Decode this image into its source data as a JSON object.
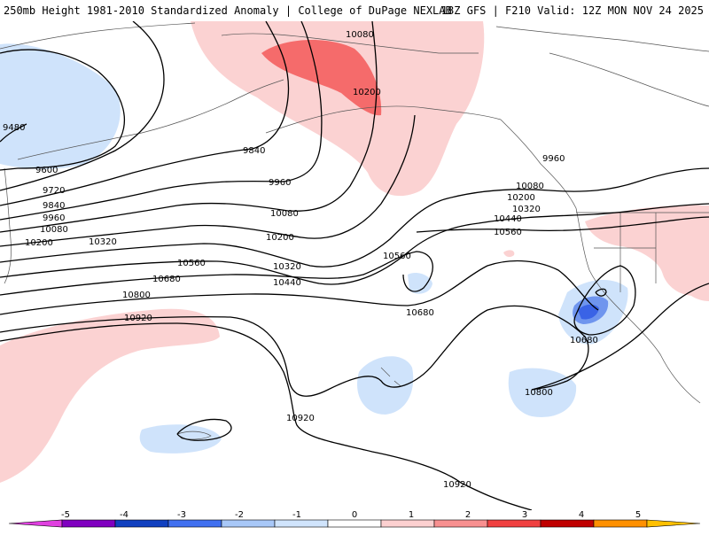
{
  "header": {
    "title_left": "250mb Height 1981-2010 Standardized Anomaly | College of DuPage NEXLAB",
    "title_right": "18Z GFS | F210 Valid: 12Z MON NOV 24 2025"
  },
  "contours": {
    "labels": [
      "9480",
      "9600",
      "9720",
      "9840",
      "9960",
      "10080",
      "10200",
      "10320",
      "10440",
      "10560",
      "10680",
      "10800",
      "10920"
    ],
    "placed": [
      {
        "id": "lbl-9480",
        "text": "9480"
      },
      {
        "id": "lbl-9600",
        "text": "9600"
      },
      {
        "id": "lbl-9720",
        "text": "9720"
      },
      {
        "id": "lbl-9840-w",
        "text": "9840"
      },
      {
        "id": "lbl-9960-w",
        "text": "9960"
      },
      {
        "id": "lbl-10080-w",
        "text": "10080"
      },
      {
        "id": "lbl-10200-w",
        "text": "10200"
      },
      {
        "id": "lbl-10320-w",
        "text": "10320"
      },
      {
        "id": "lbl-10560-w",
        "text": "10560"
      },
      {
        "id": "lbl-10680-w",
        "text": "10680"
      },
      {
        "id": "lbl-10800-w",
        "text": "10800"
      },
      {
        "id": "lbl-10920-w",
        "text": "10920"
      },
      {
        "id": "lbl-9840-c",
        "text": "9840"
      },
      {
        "id": "lbl-9960-c",
        "text": "9960"
      },
      {
        "id": "lbl-10080-c",
        "text": "10080"
      },
      {
        "id": "lbl-10200-c",
        "text": "10200"
      },
      {
        "id": "lbl-10320-c",
        "text": "10320"
      },
      {
        "id": "lbl-10440-c",
        "text": "10440"
      },
      {
        "id": "lbl-10080-n",
        "text": "10080"
      },
      {
        "id": "lbl-10200-n",
        "text": "10200"
      },
      {
        "id": "lbl-10560-m",
        "text": "10560"
      },
      {
        "id": "lbl-10680-m",
        "text": "10680"
      },
      {
        "id": "lbl-9960-e",
        "text": "9960"
      },
      {
        "id": "lbl-10080-e",
        "text": "10080"
      },
      {
        "id": "lbl-10200-e",
        "text": "10200"
      },
      {
        "id": "lbl-10320-e",
        "text": "10320"
      },
      {
        "id": "lbl-10440-e",
        "text": "10440"
      },
      {
        "id": "lbl-10560-e",
        "text": "10560"
      },
      {
        "id": "lbl-10680-e",
        "text": "10680"
      },
      {
        "id": "lbl-10800-e",
        "text": "10800"
      },
      {
        "id": "lbl-10920-s",
        "text": "10920"
      },
      {
        "id": "lbl-10920-se",
        "text": "10920"
      }
    ]
  },
  "colorbar": {
    "ticks": [
      "-5",
      "-4",
      "-3",
      "-2",
      "-1",
      "0",
      "1",
      "2",
      "3",
      "4",
      "5"
    ],
    "colors": [
      "#e040e0",
      "#8000c0",
      "#1040c0",
      "#4070f0",
      "#a8c8f8",
      "#d0e4fc",
      "#ffffff",
      "#fcd0d0",
      "#f89090",
      "#f04040",
      "#c00000",
      "#ff9000",
      "#ffc000"
    ]
  },
  "legend_colors": {
    "neg1": "#cfe3fb",
    "neg2": "#6f95ee",
    "neg3": "#3a63e6",
    "pos1": "#fbd2d2",
    "pos2": "#f56b6b",
    "contour": "#000000",
    "coast": "#555555"
  }
}
